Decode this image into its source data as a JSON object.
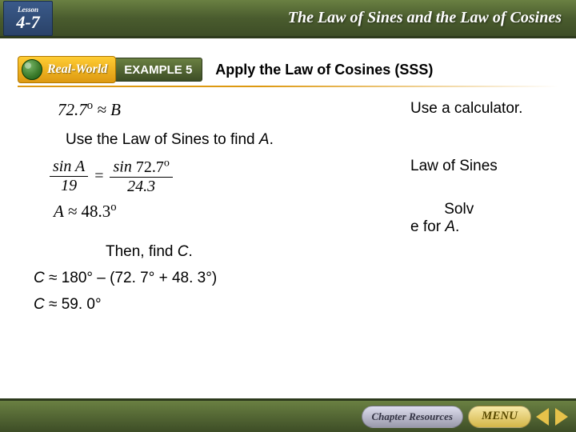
{
  "header": {
    "lesson_label": "Lesson",
    "lesson_number": "4-7",
    "title": "The Law of Sines and the Law of Cosines"
  },
  "ribbon": {
    "real_world": "Real-World",
    "example_label": "EXAMPLE 5",
    "title": "Apply the Law of Cosines (SSS)"
  },
  "math": {
    "eq1": "72.7° ≈ B",
    "note1": "Use a calculator.",
    "line2_pre": "Use the Law of Sines to find ",
    "line2_var": "A",
    "line2_post": ".",
    "frac": {
      "num_left": "sin A",
      "den_left": "19",
      "num_right": "sin 72.7°",
      "den_right": "24.3"
    },
    "note3": "Law of Sines",
    "eq4": "A ≈ 48.3°",
    "note4_pre": "Solv\ne for ",
    "note4_var": "A",
    "note4_post": ".",
    "findC_pre": "Then, find ",
    "findC_var": "C",
    "findC_post": ".",
    "calc1_pre": "C",
    "calc1_rest": " ≈ 180° – (72. 7° + 48. 3°)",
    "calc2_pre": "C",
    "calc2_rest": " ≈ 59. 0°"
  },
  "footer": {
    "chapter": "Chapter Resources",
    "menu": "MENU"
  },
  "colors": {
    "header_bg_top": "#6a8042",
    "header_bg_bottom": "#3d4d26",
    "badge_bg_top": "#3a5a8a",
    "badge_bg_bottom": "#2a4268",
    "ribbon_gold_top": "#ffcc33",
    "ribbon_gold_bottom": "#dd9911",
    "text": "#000000"
  }
}
